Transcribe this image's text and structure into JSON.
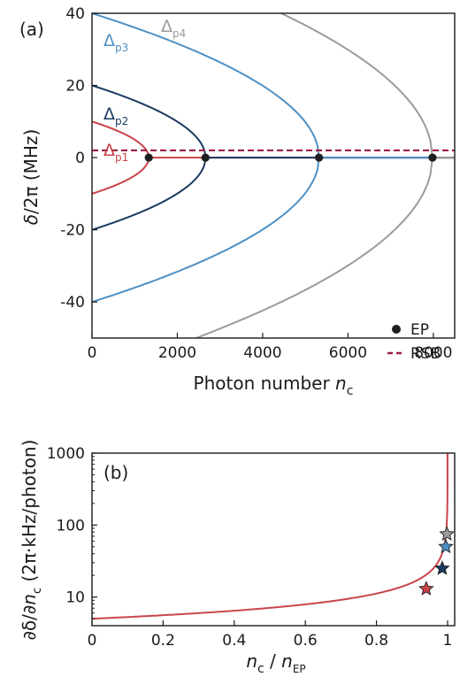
{
  "colors": {
    "p1": "#c9444a",
    "p2": "#1b3a60",
    "p3": "#4d90c5",
    "p4": "#9b9b9b",
    "ep": "#1e1e1e",
    "rsb": "#9c1f3f",
    "axis": "#1a1a1a"
  },
  "chart_data": [
    {
      "panel": "(a)",
      "type": "line",
      "xlabel": "Photon number ",
      "xlabel_italic": "n",
      "xlabel_sub": "c",
      "ylabel": "/2π (MHz)",
      "ylabel_symbol": "δ",
      "xlim": [
        0,
        8500
      ],
      "ylim": [
        -50,
        40
      ],
      "x_ticks": [
        "0",
        "2000",
        "4000",
        "6000",
        "8000"
      ],
      "y_ticks": [
        "-40",
        "-20",
        "0",
        "20",
        "40"
      ],
      "series": [
        {
          "name": "Δp1",
          "label_main": "Δ",
          "label_sub": "p1",
          "color_key": "p1",
          "delta0": 10,
          "n_ep": 1330
        },
        {
          "name": "Δp2",
          "label_main": "Δ",
          "label_sub": "p2",
          "color_key": "p2",
          "delta0": 20,
          "n_ep": 2660
        },
        {
          "name": "Δp3",
          "label_main": "Δ",
          "label_sub": "p3",
          "color_key": "p3",
          "delta0": 40,
          "n_ep": 5320
        },
        {
          "name": "Δp4",
          "label_main": "Δ",
          "label_sub": "p4",
          "color_key": "p4",
          "delta0": 60,
          "n_ep": 7980
        }
      ],
      "ep_points": [
        {
          "x": 1330,
          "y": 0
        },
        {
          "x": 2660,
          "y": 0
        },
        {
          "x": 5320,
          "y": 0
        },
        {
          "x": 7980,
          "y": 0
        }
      ],
      "rsb_y": 2,
      "legend": {
        "position": "bottom-right",
        "ep_label": "EP",
        "rsb_label": "RSB"
      }
    },
    {
      "panel": "(b)",
      "type": "line",
      "scale_y": "log",
      "xlabel_n": "n",
      "xlabel_sub1": "c",
      "xlabel_sep": " / ",
      "xlabel_sub2": "EP",
      "ylabel_main": "∂δ/∂",
      "ylabel_n": "n",
      "ylabel_sub": "c",
      "ylabel_unit": " (2π·kHz/photon)",
      "xlim": [
        0,
        1.02
      ],
      "ylim": [
        4,
        1000
      ],
      "x_ticks": [
        "0",
        "0.2",
        "0.4",
        "0.6",
        "0.8",
        "1"
      ],
      "y_ticks": [
        "10",
        "100",
        "1000"
      ],
      "curve": {
        "A": 5,
        "color_key": "p1"
      },
      "stars": [
        {
          "x": 0.94,
          "y": 13,
          "color_key": "p1"
        },
        {
          "x": 0.985,
          "y": 25,
          "color_key": "p2"
        },
        {
          "x": 0.995,
          "y": 50,
          "color_key": "p3"
        },
        {
          "x": 0.998,
          "y": 75,
          "color_key": "p4"
        }
      ]
    }
  ]
}
